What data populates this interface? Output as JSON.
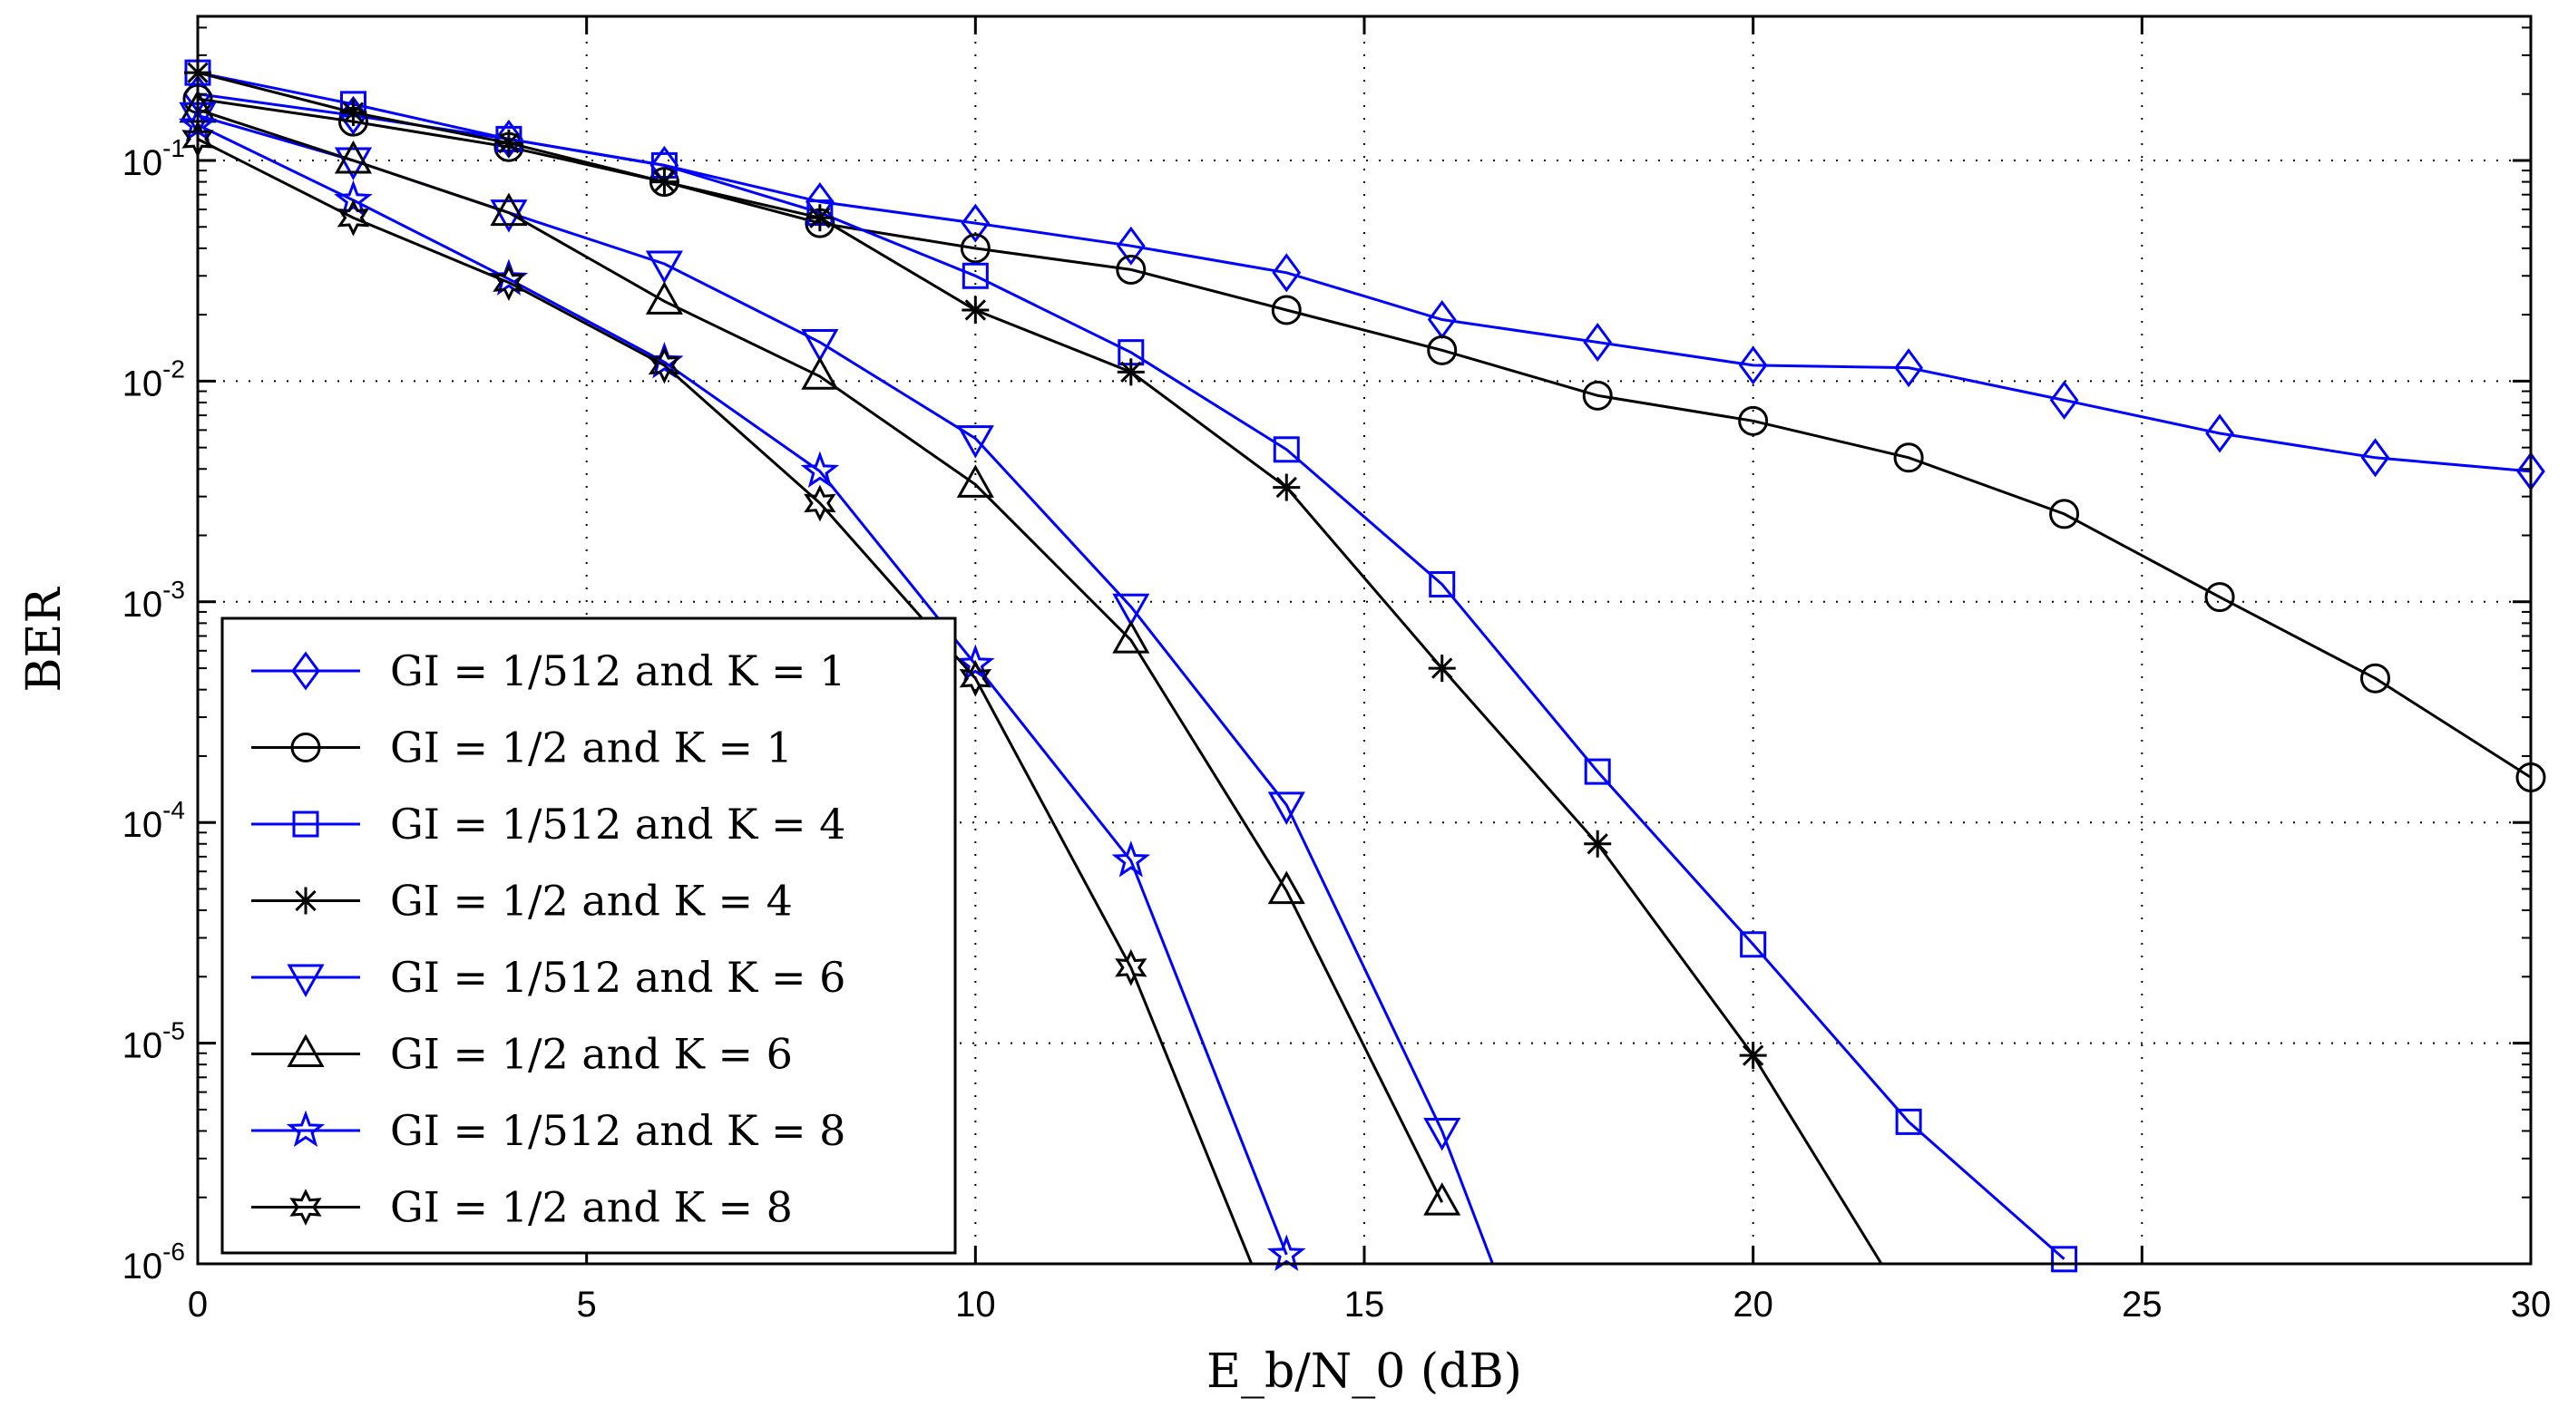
{
  "chart_data": {
    "type": "line",
    "title": "",
    "xlabel": "E_b/N_0 (dB)",
    "ylabel": "BER",
    "xlim": [
      0,
      30
    ],
    "ylim": [
      1e-06,
      0.45
    ],
    "yscale": "log",
    "grid": true,
    "x_ticks": [
      "0",
      "5",
      "10",
      "15",
      "20",
      "25",
      "30"
    ],
    "y_ticks": [
      "10^-1",
      "10^-2",
      "10^-3",
      "10^-4",
      "10^-5",
      "10^-6"
    ],
    "legend_position": "lower-left",
    "series": [
      {
        "name": "GI = 1/512 and K = 1",
        "color": "#0000ff",
        "marker": "diamond",
        "x": [
          0,
          2,
          4,
          6,
          8,
          10,
          12,
          14,
          16,
          18,
          20,
          22,
          24,
          26,
          28,
          30
        ],
        "y": [
          0.2,
          0.16,
          0.125,
          0.095,
          0.065,
          0.052,
          0.041,
          0.031,
          0.019,
          0.015,
          0.0118,
          0.0115,
          0.0082,
          0.0058,
          0.0045,
          0.0039
        ]
      },
      {
        "name": "GI = 1/2 and K = 1",
        "color": "#000000",
        "marker": "circle",
        "x": [
          0,
          2,
          4,
          6,
          8,
          10,
          12,
          14,
          16,
          18,
          20,
          22,
          24,
          26,
          28,
          30
        ],
        "y": [
          0.19,
          0.15,
          0.115,
          0.08,
          0.052,
          0.04,
          0.032,
          0.021,
          0.0138,
          0.0086,
          0.0066,
          0.0045,
          0.0025,
          0.00105,
          0.00045,
          0.00016
        ]
      },
      {
        "name": "GI = 1/512 and K = 4",
        "color": "#0000ff",
        "marker": "square",
        "x": [
          0,
          2,
          4,
          6,
          8,
          10,
          12,
          14,
          16,
          18,
          20,
          22,
          24
        ],
        "y": [
          0.25,
          0.18,
          0.125,
          0.095,
          0.058,
          0.03,
          0.0135,
          0.0049,
          0.0012,
          0.00017,
          2.8e-05,
          4.4e-06,
          1.05e-06
        ]
      },
      {
        "name": "GI = 1/2 and K = 4",
        "color": "#000000",
        "marker": "asterisk",
        "x": [
          0,
          2,
          4,
          6,
          8,
          10,
          12,
          14,
          16,
          18,
          20,
          21.65
        ],
        "y": [
          0.25,
          0.165,
          0.12,
          0.08,
          0.055,
          0.021,
          0.011,
          0.0033,
          0.0005,
          8e-05,
          8.8e-06,
          1e-06
        ]
      },
      {
        "name": "GI = 1/512 and K = 6",
        "color": "#0000ff",
        "marker": "triangle-down",
        "x": [
          0,
          2,
          4,
          6,
          8,
          10,
          12,
          14,
          16,
          16.65
        ],
        "y": [
          0.16,
          0.1,
          0.058,
          0.034,
          0.015,
          0.0055,
          0.00095,
          0.00012,
          4e-06,
          1e-06
        ]
      },
      {
        "name": "GI = 1/2 and K = 6",
        "color": "#000000",
        "marker": "triangle-up",
        "x": [
          0,
          2,
          4,
          6,
          8,
          10,
          12,
          14,
          16
        ],
        "y": [
          0.17,
          0.1,
          0.058,
          0.023,
          0.0105,
          0.0034,
          0.00067,
          4.9e-05,
          1.9e-06
        ]
      },
      {
        "name": "GI = 1/512 and K = 8",
        "color": "#0000ff",
        "marker": "star5",
        "x": [
          0,
          2,
          4,
          6,
          8,
          10,
          12,
          14
        ],
        "y": [
          0.145,
          0.066,
          0.029,
          0.0122,
          0.0039,
          0.00052,
          6.7e-05,
          1.1e-06
        ]
      },
      {
        "name": "GI = 1/2 and K = 8",
        "color": "#000000",
        "marker": "star6",
        "x": [
          0,
          2,
          4,
          6,
          8,
          10,
          12,
          13.55
        ],
        "y": [
          0.125,
          0.055,
          0.028,
          0.0118,
          0.0028,
          0.00045,
          2.2e-05,
          1e-06
        ]
      }
    ]
  }
}
